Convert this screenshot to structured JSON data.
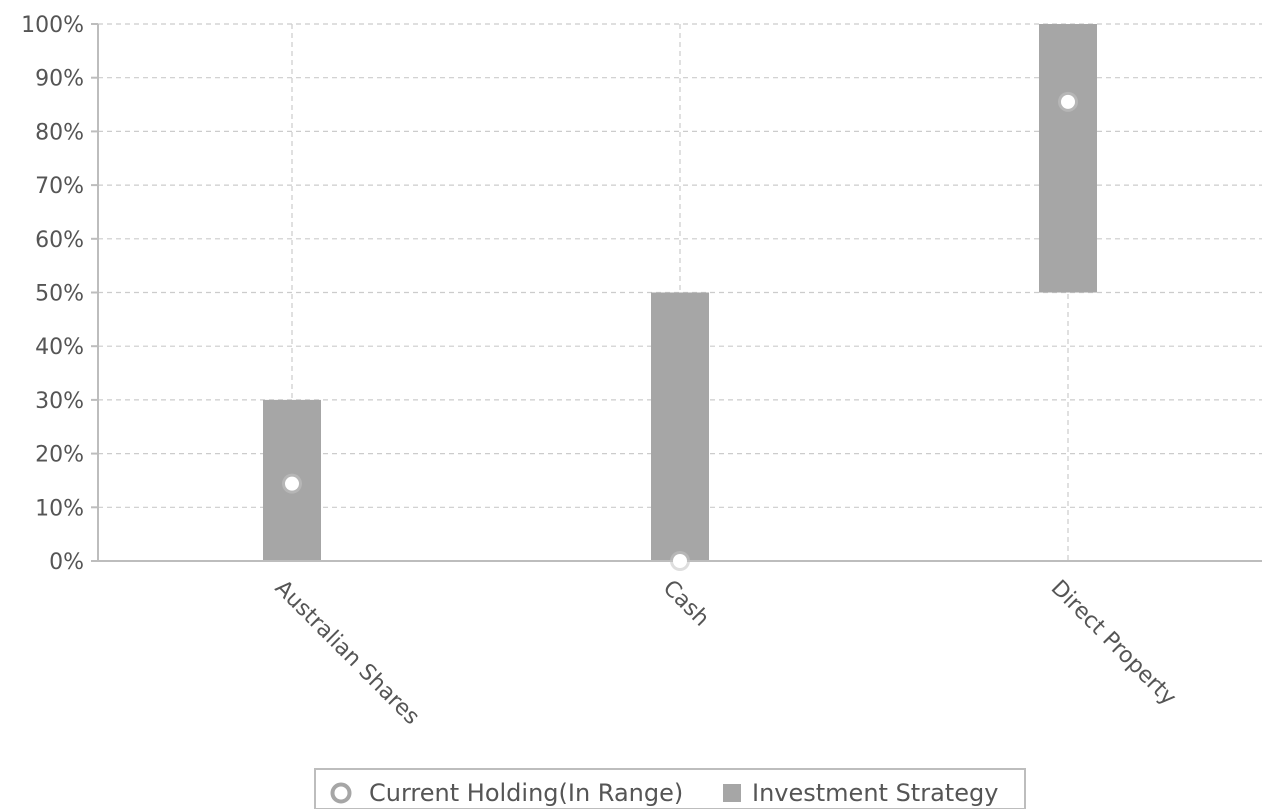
{
  "chart_data": {
    "type": "bar",
    "title": "",
    "xlabel": "",
    "ylabel": "",
    "ylim": [
      0,
      100
    ],
    "y_ticks": [
      "0%",
      "10%",
      "20%",
      "30%",
      "40%",
      "50%",
      "60%",
      "70%",
      "80%",
      "90%",
      "100%"
    ],
    "categories": [
      "Australian Shares",
      "Cash",
      "Direct Property"
    ],
    "series": [
      {
        "name": "Investment Strategy",
        "kind": "range-bar",
        "ranges": [
          [
            0,
            30
          ],
          [
            0,
            50
          ],
          [
            50,
            100
          ]
        ],
        "color": "#a6a6a6"
      },
      {
        "name": "Current Holding(In Range)",
        "kind": "point",
        "values": [
          14.4,
          0,
          85.5
        ],
        "color": "#ffffff"
      }
    ],
    "grid": true,
    "legend_position": "bottom-center"
  },
  "legend": {
    "items": [
      {
        "label": "Current Holding(In Range)",
        "icon": "ring-marker-icon"
      },
      {
        "label": "Investment Strategy",
        "icon": "square-marker-icon"
      }
    ]
  }
}
